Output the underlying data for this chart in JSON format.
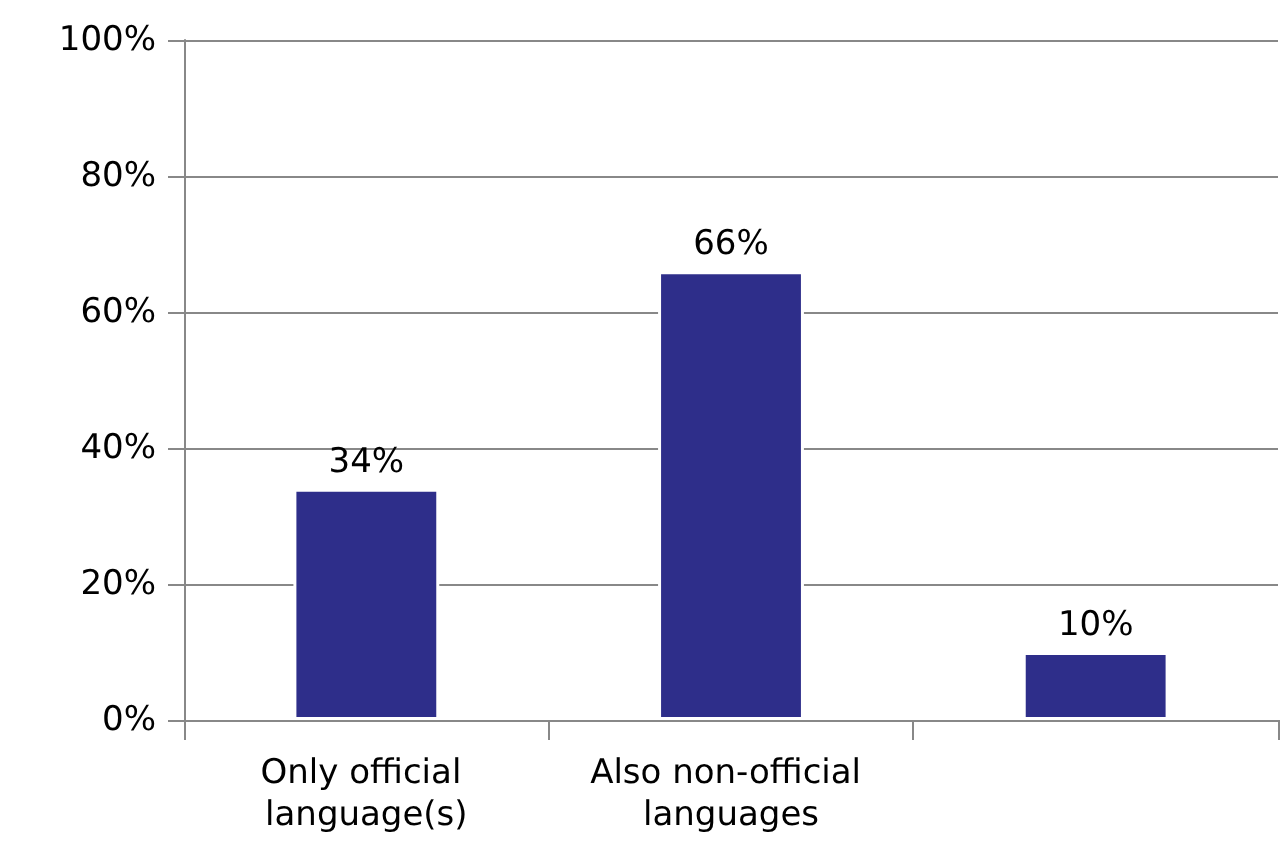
{
  "chart_data": {
    "type": "bar",
    "categories": [
      "Only official language(s)",
      "Also non-official languages",
      null
    ],
    "values": [
      34,
      66,
      10
    ],
    "color": "#2e2e8a",
    "value_labels": [
      "34%",
      "66%",
      "10%"
    ],
    "ylim": [
      0,
      100
    ],
    "yticks": [
      {
        "value": 0,
        "label": "0%"
      },
      {
        "value": 20,
        "label": "20%"
      },
      {
        "value": 40,
        "label": "40%"
      },
      {
        "value": 60,
        "label": "60%"
      },
      {
        "value": 80,
        "label": "80%"
      },
      {
        "value": 100,
        "label": "100%"
      }
    ],
    "grid": "y"
  }
}
